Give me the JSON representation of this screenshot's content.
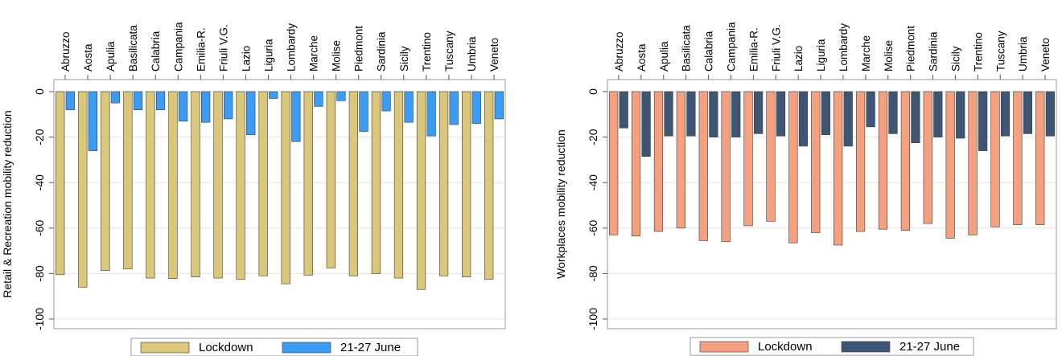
{
  "chart_data": [
    {
      "type": "bar",
      "title": "",
      "xlabel": "",
      "ylabel": "Retail & Recreation mobility reduction",
      "ylim": [
        -100,
        0
      ],
      "yticks": [
        0,
        -20,
        -40,
        -60,
        -80,
        -100
      ],
      "grid": true,
      "legend_position": "bottom",
      "categories": [
        "Abruzzo",
        "Aosta",
        "Apulia",
        "Basilicata",
        "Calabria",
        "Campania",
        "Emilia-R.",
        "Friuli V.G.",
        "Lazio",
        "Liguria",
        "Lombardy",
        "Marche",
        "Molise",
        "Piedmont",
        "Sardinia",
        "Sicily",
        "Trentino",
        "Tuscany",
        "Umbria",
        "Veneto"
      ],
      "series": [
        {
          "name": "Lockdown",
          "color": "#dbc77a",
          "values": [
            -80.5,
            -86,
            -78.7,
            -78,
            -82,
            -82.2,
            -81.5,
            -82,
            -82.5,
            -81,
            -84.5,
            -80.7,
            -77.5,
            -81,
            -80,
            -82,
            -87,
            -81,
            -81.5,
            -82.5
          ]
        },
        {
          "name": "21-27 June",
          "color": "#3a9cf5",
          "values": [
            -8,
            -26,
            -5,
            -8,
            -8,
            -13,
            -13.5,
            -12,
            -19,
            -3,
            -22,
            -6.5,
            -4,
            -17.5,
            -8.5,
            -13.5,
            -19.5,
            -14.5,
            -14,
            -12
          ]
        }
      ]
    },
    {
      "type": "bar",
      "title": "",
      "xlabel": "",
      "ylabel": "Workplaces mobility reduction",
      "ylim": [
        -100,
        0
      ],
      "yticks": [
        0,
        -20,
        -40,
        -60,
        -80,
        -100
      ],
      "grid": true,
      "legend_position": "bottom",
      "categories": [
        "Abruzzo",
        "Aosta",
        "Apulia",
        "Basilicata",
        "Calabria",
        "Campania",
        "Emilia-R.",
        "Friuli V.G.",
        "Lazio",
        "Liguria",
        "Lombardy",
        "Marche",
        "Molise",
        "Piedmont",
        "Sardinia",
        "Sicily",
        "Trentino",
        "Tuscany",
        "Umbria",
        "Veneto"
      ],
      "series": [
        {
          "name": "Lockdown",
          "color": "#f5a07f",
          "values": [
            -63,
            -63.5,
            -61.5,
            -60,
            -65.5,
            -66,
            -59,
            -57,
            -66.5,
            -62,
            -67.5,
            -61.5,
            -60.5,
            -61,
            -58,
            -64.5,
            -63,
            -59.5,
            -58.5,
            -58.5
          ]
        },
        {
          "name": "21-27 June",
          "color": "#3e5673",
          "values": [
            -16,
            -28.5,
            -19.5,
            -19.5,
            -20,
            -20,
            -18.5,
            -19.5,
            -24,
            -19,
            -24,
            -15.5,
            -18.5,
            -22.5,
            -20,
            -20.5,
            -26,
            -19.5,
            -18.5,
            -19.5
          ]
        }
      ]
    }
  ]
}
